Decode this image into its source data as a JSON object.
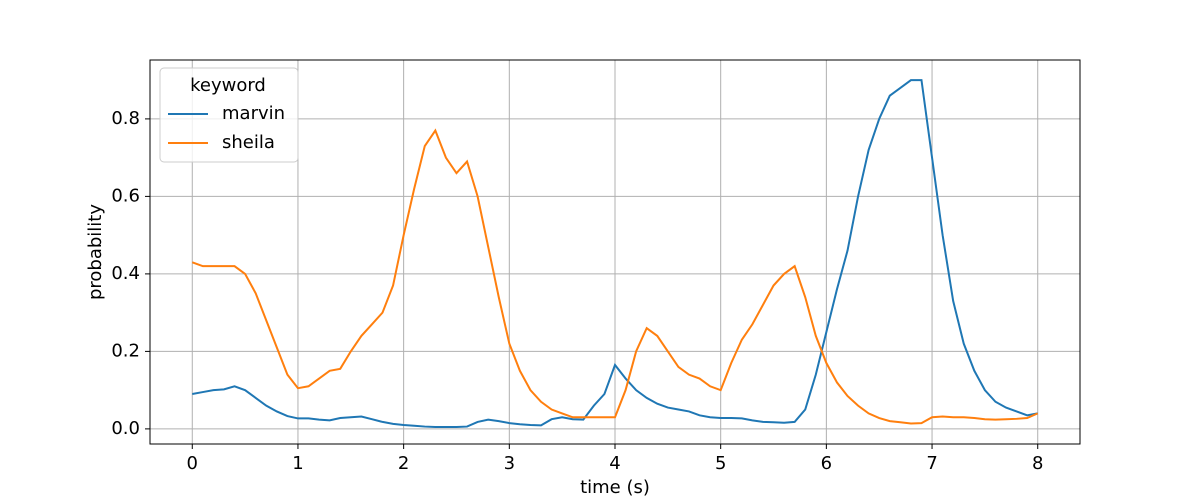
{
  "chart_data": {
    "type": "line",
    "xlabel": "time (s)",
    "ylabel": "probability",
    "x": [
      0,
      0.1,
      0.2,
      0.3,
      0.4,
      0.5,
      0.6,
      0.7,
      0.8,
      0.9,
      1,
      1.1,
      1.2,
      1.3,
      1.4,
      1.5,
      1.6,
      1.7,
      1.8,
      1.9,
      2,
      2.1,
      2.2,
      2.3,
      2.4,
      2.5,
      2.6,
      2.7,
      2.8,
      2.9,
      3,
      3.1,
      3.2,
      3.3,
      3.4,
      3.5,
      3.6,
      3.7,
      3.8,
      3.9,
      4,
      4.1,
      4.2,
      4.3,
      4.4,
      4.5,
      4.6,
      4.7,
      4.8,
      4.9,
      5,
      5.1,
      5.2,
      5.3,
      5.4,
      5.5,
      5.6,
      5.7,
      5.8,
      5.9,
      6,
      6.1,
      6.2,
      6.3,
      6.4,
      6.5,
      6.6,
      6.7,
      6.8,
      6.9,
      7,
      7.1,
      7.2,
      7.3,
      7.4,
      7.5,
      7.6,
      7.7,
      7.8,
      7.9,
      8
    ],
    "series": [
      {
        "name": "marvin",
        "color": "#1f77b4",
        "values": [
          0.09,
          0.095,
          0.1,
          0.102,
          0.11,
          0.1,
          0.08,
          0.06,
          0.045,
          0.033,
          0.027,
          0.027,
          0.024,
          0.022,
          0.028,
          0.03,
          0.032,
          0.025,
          0.018,
          0.013,
          0.01,
          0.008,
          0.006,
          0.005,
          0.005,
          0.005,
          0.006,
          0.018,
          0.024,
          0.02,
          0.015,
          0.012,
          0.01,
          0.009,
          0.025,
          0.03,
          0.025,
          0.024,
          0.06,
          0.09,
          0.165,
          0.13,
          0.1,
          0.08,
          0.065,
          0.055,
          0.05,
          0.045,
          0.035,
          0.03,
          0.028,
          0.028,
          0.027,
          0.022,
          0.018,
          0.017,
          0.016,
          0.018,
          0.05,
          0.14,
          0.25,
          0.36,
          0.46,
          0.6,
          0.72,
          0.8,
          0.86,
          0.88,
          0.9,
          0.9,
          0.7,
          0.5,
          0.33,
          0.22,
          0.15,
          0.1,
          0.07,
          0.055,
          0.045,
          0.035,
          0.04
        ]
      },
      {
        "name": "sheila",
        "color": "#ff7f0e",
        "values": [
          0.43,
          0.42,
          0.42,
          0.42,
          0.42,
          0.4,
          0.35,
          0.28,
          0.21,
          0.14,
          0.105,
          0.11,
          0.13,
          0.15,
          0.155,
          0.2,
          0.24,
          0.27,
          0.3,
          0.37,
          0.5,
          0.62,
          0.73,
          0.77,
          0.7,
          0.66,
          0.69,
          0.6,
          0.47,
          0.34,
          0.22,
          0.15,
          0.1,
          0.07,
          0.05,
          0.04,
          0.03,
          0.03,
          0.03,
          0.03,
          0.03,
          0.1,
          0.2,
          0.26,
          0.24,
          0.2,
          0.16,
          0.14,
          0.13,
          0.11,
          0.1,
          0.17,
          0.23,
          0.27,
          0.32,
          0.37,
          0.4,
          0.42,
          0.34,
          0.24,
          0.17,
          0.12,
          0.085,
          0.06,
          0.04,
          0.028,
          0.02,
          0.017,
          0.014,
          0.015,
          0.03,
          0.032,
          0.03,
          0.03,
          0.028,
          0.025,
          0.024,
          0.025,
          0.026,
          0.028,
          0.04
        ]
      }
    ],
    "legend_title": "keyword",
    "legend": "upper left",
    "xlim": [
      -0.4,
      8.4
    ],
    "xticks": [
      0,
      1,
      2,
      3,
      4,
      5,
      6,
      7,
      8
    ],
    "ylim": [
      -0.039,
      0.952
    ],
    "yticks": [
      {
        "value": 0,
        "label": "0.0"
      },
      0.2,
      0.4,
      0.6,
      0.8
    ],
    "grid": true
  }
}
